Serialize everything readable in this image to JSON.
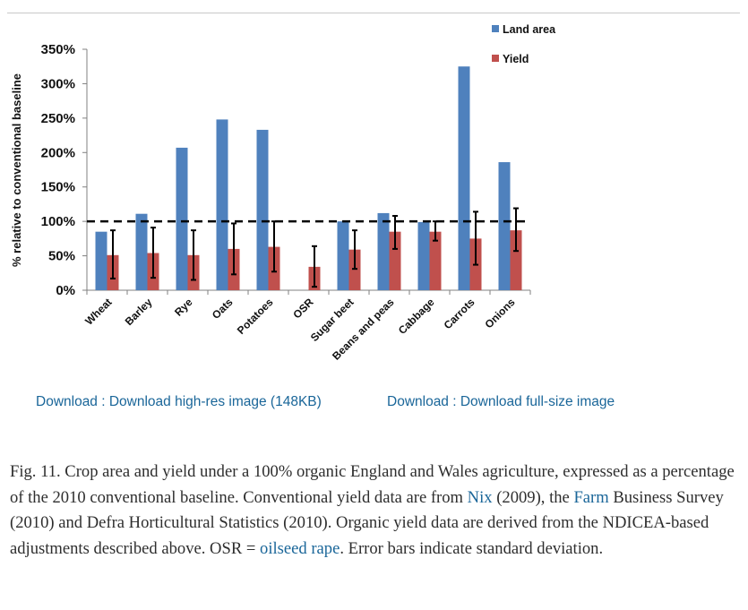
{
  "chart_data": {
    "type": "bar",
    "categories": [
      "Wheat",
      "Barley",
      "Rye",
      "Oats",
      "Potatoes",
      "OSR",
      "Sugar beet",
      "Beans and peas",
      "Cabbage",
      "Carrots",
      "Onions"
    ],
    "series": [
      {
        "name": "Land area",
        "color": "#4f81bd",
        "values": [
          85,
          111,
          207,
          248,
          233,
          null,
          100,
          112,
          99,
          325,
          186
        ]
      },
      {
        "name": "Yield",
        "color": "#c0504d",
        "values": [
          51,
          54,
          51,
          60,
          63,
          34,
          59,
          85,
          85,
          75,
          87
        ],
        "error_low": [
          17,
          18,
          15,
          23,
          27,
          5,
          31,
          60,
          72,
          37,
          57
        ],
        "error_high": [
          87,
          91,
          87,
          97,
          100,
          64,
          87,
          108,
          100,
          114,
          119
        ]
      }
    ],
    "ylabel": "% relative to conventional baseline",
    "ylim": [
      0,
      350
    ],
    "yticks": [
      0,
      50,
      100,
      150,
      200,
      250,
      300,
      350
    ],
    "ytick_labels": [
      "0%",
      "50%",
      "100%",
      "150%",
      "200%",
      "250%",
      "300%",
      "350%"
    ],
    "reference_line": 100,
    "legend_position": "top-right",
    "grid": false
  },
  "downloads": {
    "high_res": "Download : Download high-res image (148KB)",
    "full_size": "Download : Download full-size image"
  },
  "caption": {
    "part1": "Fig. 11. Crop area and yield under a 100% organic England and Wales agriculture, expressed as a percentage of the 2010 conventional baseline. Conventional yield data are from ",
    "link_nix": "Nix",
    "part2": " (2009), the ",
    "link_farm": "Farm",
    "part3": " Business Survey (2010) and Defra Horticultural Statistics (2010). Organic yield data are derived from the NDICEA-based adjustments described above. OSR = ",
    "link_osr": "oilseed rape",
    "part4": ". Error bars indicate standard deviation."
  }
}
